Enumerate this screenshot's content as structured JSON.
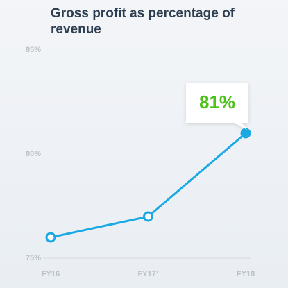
{
  "chart_data": {
    "type": "line",
    "title": "Gross profit as percentage of revenue",
    "categories": [
      "FY16",
      "FY17¹",
      "FY18"
    ],
    "values": [
      76,
      77,
      81
    ],
    "value_labels": [
      null,
      null,
      "81%"
    ],
    "color": "#1aa9e3",
    "ylim": [
      75,
      85
    ],
    "yticks": [
      {
        "value": 75,
        "label": "75%"
      },
      {
        "value": 80,
        "label": "80%"
      },
      {
        "value": 85,
        "label": "85%"
      }
    ],
    "grid": false
  }
}
